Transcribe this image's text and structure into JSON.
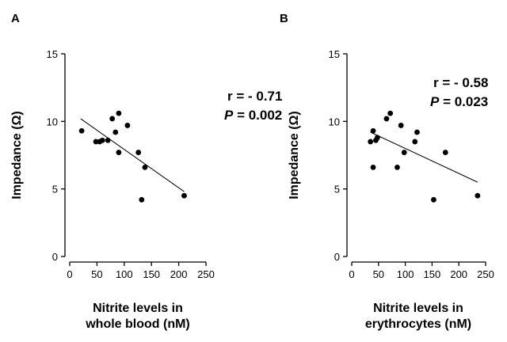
{
  "chart_data": [
    {
      "type": "scatter",
      "panel": "A",
      "xlabel_lines": [
        "Nitrite levels in",
        "whole blood (nM)"
      ],
      "ylabel": "Impedance (Ω)",
      "xlim": [
        0,
        250
      ],
      "ylim": [
        0,
        15
      ],
      "xticks": [
        0,
        50,
        100,
        150,
        200,
        250
      ],
      "yticks": [
        0,
        5,
        10,
        15
      ],
      "grid": false,
      "stat_r": "r = - 0.71",
      "stat_p_letter": "P",
      "stat_p_value": " = 0.002",
      "points": [
        {
          "x": 22,
          "y": 9.3
        },
        {
          "x": 48,
          "y": 8.5
        },
        {
          "x": 55,
          "y": 8.5
        },
        {
          "x": 60,
          "y": 8.6
        },
        {
          "x": 70,
          "y": 8.6
        },
        {
          "x": 78,
          "y": 10.2
        },
        {
          "x": 84,
          "y": 9.2
        },
        {
          "x": 90,
          "y": 10.6
        },
        {
          "x": 90,
          "y": 7.7
        },
        {
          "x": 106,
          "y": 9.7
        },
        {
          "x": 126,
          "y": 7.7
        },
        {
          "x": 138,
          "y": 6.6
        },
        {
          "x": 132,
          "y": 4.2
        },
        {
          "x": 210,
          "y": 4.5
        }
      ],
      "regression": {
        "x": [
          20,
          210
        ],
        "y": [
          10.2,
          4.8
        ]
      }
    },
    {
      "type": "scatter",
      "panel": "B",
      "xlabel_lines": [
        "Nitrite levels in",
        "erythrocytes (nM)"
      ],
      "ylabel": "Impedance (Ω)",
      "xlim": [
        0,
        250
      ],
      "ylim": [
        0,
        15
      ],
      "xticks": [
        0,
        50,
        100,
        150,
        200,
        250
      ],
      "yticks": [
        0,
        5,
        10,
        15
      ],
      "grid": false,
      "stat_r": "r  = - 0.58",
      "stat_p_letter": "P",
      "stat_p_value": " = 0.023",
      "points": [
        {
          "x": 35,
          "y": 8.5
        },
        {
          "x": 40,
          "y": 9.3
        },
        {
          "x": 45,
          "y": 8.6
        },
        {
          "x": 48,
          "y": 8.8
        },
        {
          "x": 40,
          "y": 6.6
        },
        {
          "x": 65,
          "y": 10.2
        },
        {
          "x": 72,
          "y": 10.6
        },
        {
          "x": 85,
          "y": 6.6
        },
        {
          "x": 92,
          "y": 9.7
        },
        {
          "x": 98,
          "y": 7.7
        },
        {
          "x": 118,
          "y": 8.5
        },
        {
          "x": 122,
          "y": 9.2
        },
        {
          "x": 153,
          "y": 4.2
        },
        {
          "x": 175,
          "y": 7.7
        },
        {
          "x": 235,
          "y": 4.5
        }
      ],
      "regression": {
        "x": [
          35,
          235
        ],
        "y": [
          9.2,
          5.5
        ]
      }
    }
  ]
}
